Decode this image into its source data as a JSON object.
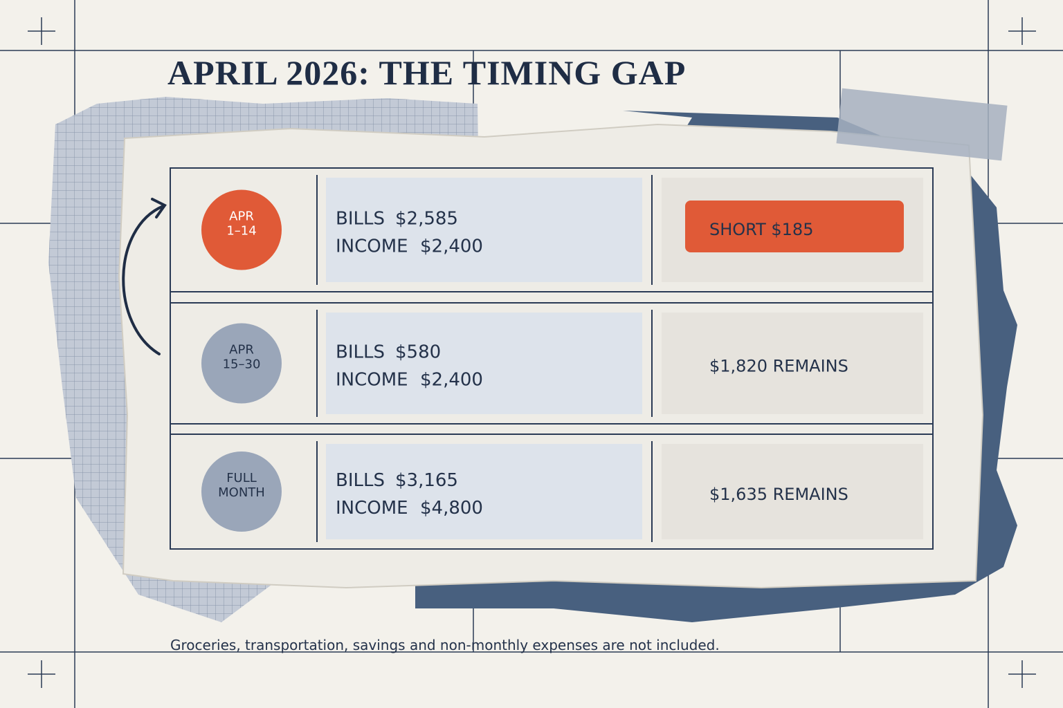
{
  "title": "APRIL 2026: THE TIMING GAP",
  "rows": [
    {
      "period": [
        "APR",
        "1–14"
      ],
      "bills_label": "BILLS",
      "bills": "$2,585",
      "income_label": "INCOME",
      "income": "$2,400",
      "result": "SHORT $185"
    },
    {
      "period": [
        "APR",
        "15–30"
      ],
      "bills_label": "BILLS",
      "bills": "$580",
      "income_label": "INCOME",
      "income": "$2,400",
      "result": "$1,820 REMAINS"
    },
    {
      "period": [
        "FULL",
        "MONTH"
      ],
      "bills_label": "BILLS",
      "bills": "$3,165",
      "income_label": "INCOME",
      "income": "$4,800",
      "result": "$1,635 REMAINS"
    }
  ],
  "footnote": "Groceries, transportation, savings and non-monthly expenses are not included."
}
